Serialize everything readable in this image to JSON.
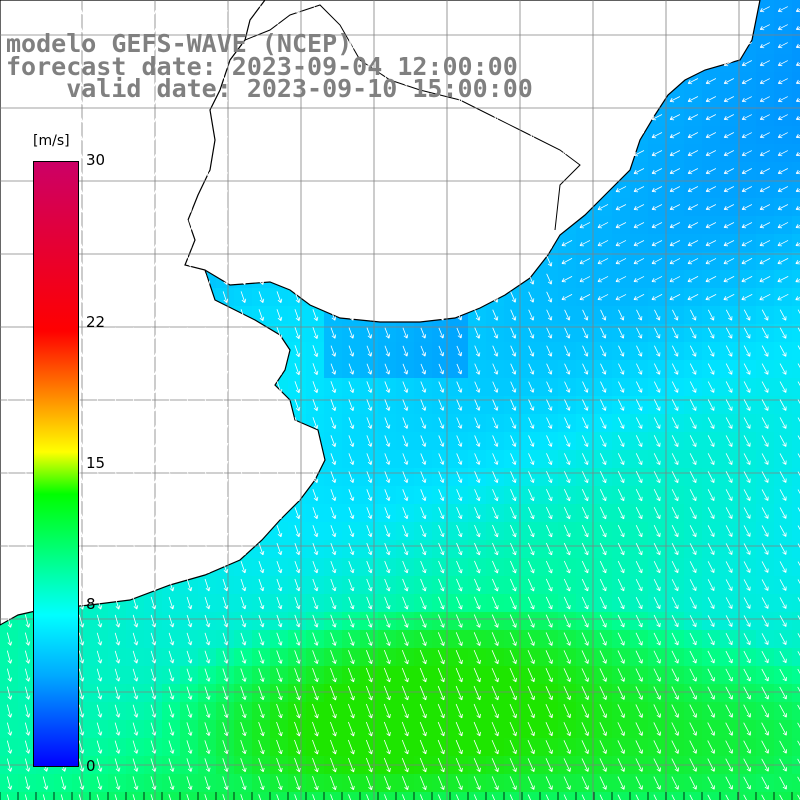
{
  "title_lines": {
    "line1": "modelo GEFS-WAVE (NCEP)",
    "line2": "forecast date: 2023-09-04 12:00:00",
    "line3": "    valid date: 2023-09-10 15:00:00"
  },
  "colorbar": {
    "units": "[m/s]",
    "ticks": [
      {
        "label": "30",
        "value": 30
      },
      {
        "label": "22",
        "value": 22
      },
      {
        "label": "15",
        "value": 15
      },
      {
        "label": "8",
        "value": 8
      },
      {
        "label": "0",
        "value": 0
      }
    ],
    "min": 0,
    "max": 30
  },
  "colors": {
    "land": "#ffffff",
    "coast": "#000000",
    "grid": "#808080",
    "arrow": "#ffffff",
    "title": "#808080"
  }
}
